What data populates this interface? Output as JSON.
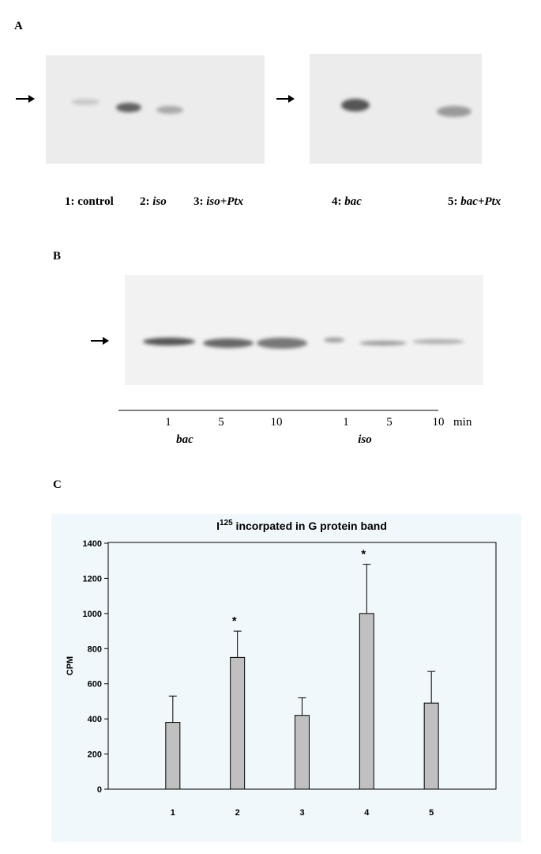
{
  "panel_a": {
    "label": "A",
    "lanes": [
      {
        "number": "1:",
        "text": "control",
        "italic": false
      },
      {
        "number": "2:",
        "text": "iso",
        "italic": true
      },
      {
        "number": "3:",
        "text": "iso+Ptx",
        "italic": true
      },
      {
        "number": "4:",
        "text": "bac",
        "italic": true
      },
      {
        "number": "5:",
        "text": "bac+Ptx",
        "italic": true
      }
    ]
  },
  "panel_b": {
    "label": "B",
    "times": [
      "1",
      "5",
      "10",
      "1",
      "5",
      "10"
    ],
    "unit": "min",
    "groups": [
      "bac",
      "iso"
    ]
  },
  "panel_c": {
    "label": "C"
  },
  "chart_data": {
    "type": "bar",
    "title": {
      "text": "I",
      "superscript": "125",
      "rest": " incorpated in G protein band"
    },
    "y_label": "CPM",
    "categories": [
      "1",
      "2",
      "3",
      "4",
      "5"
    ],
    "values": [
      380,
      750,
      420,
      1000,
      490
    ],
    "errors": [
      150,
      150,
      100,
      280,
      180
    ],
    "color": "#c0c0c0",
    "ylim": [
      0,
      1400
    ],
    "yticks": [
      0,
      200,
      400,
      600,
      800,
      1000,
      1200,
      1400
    ],
    "annotations": [
      {
        "text": "*",
        "category": "2"
      },
      {
        "text": "*",
        "category": "4"
      }
    ]
  }
}
